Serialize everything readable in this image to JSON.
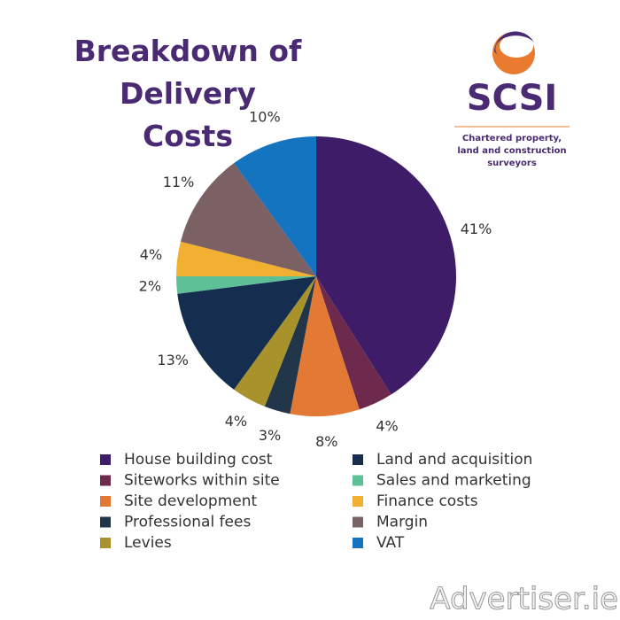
{
  "chart_data": {
    "type": "pie",
    "title": "Breakdown of Delivery Costs",
    "categories": [
      "House building cost",
      "Siteworks within site",
      "Site development",
      "Professional fees",
      "Levies",
      "Land and acquisition",
      "Sales and marketing",
      "Finance costs",
      "Margin",
      "VAT"
    ],
    "values": [
      41,
      4,
      8,
      3,
      4,
      13,
      2,
      4,
      11,
      10
    ],
    "value_labels": [
      "41%",
      "4%",
      "8%",
      "3%",
      "4%",
      "13%",
      "2%",
      "4%",
      "11%",
      "10%"
    ],
    "colors": [
      "#3e1c68",
      "#6e2a4c",
      "#e27a36",
      "#22364a",
      "#a8922b",
      "#152e50",
      "#5dc096",
      "#f1b031",
      "#7b6064",
      "#1474c0"
    ]
  },
  "logo_name": "SCSI",
  "logo_tagline": "Chartered property, land and construction surveyors",
  "watermark": "Advertiser.ie"
}
